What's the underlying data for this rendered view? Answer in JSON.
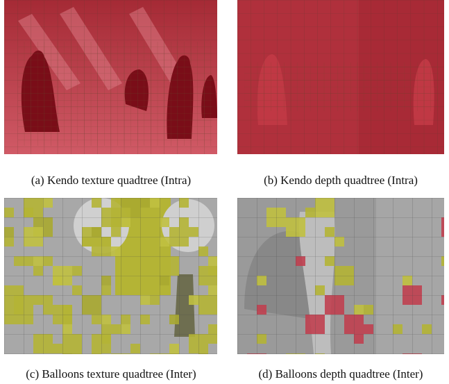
{
  "figures": [
    {
      "caption": "(a) Kendo texture quadtree (Intra)"
    },
    {
      "caption": "(b) Kendo depth quadtree (Intra)"
    },
    {
      "caption": "(c) Balloons texture quadtree (Inter)"
    },
    {
      "caption": "(d) Balloons depth quadtree (Inter)"
    }
  ]
}
